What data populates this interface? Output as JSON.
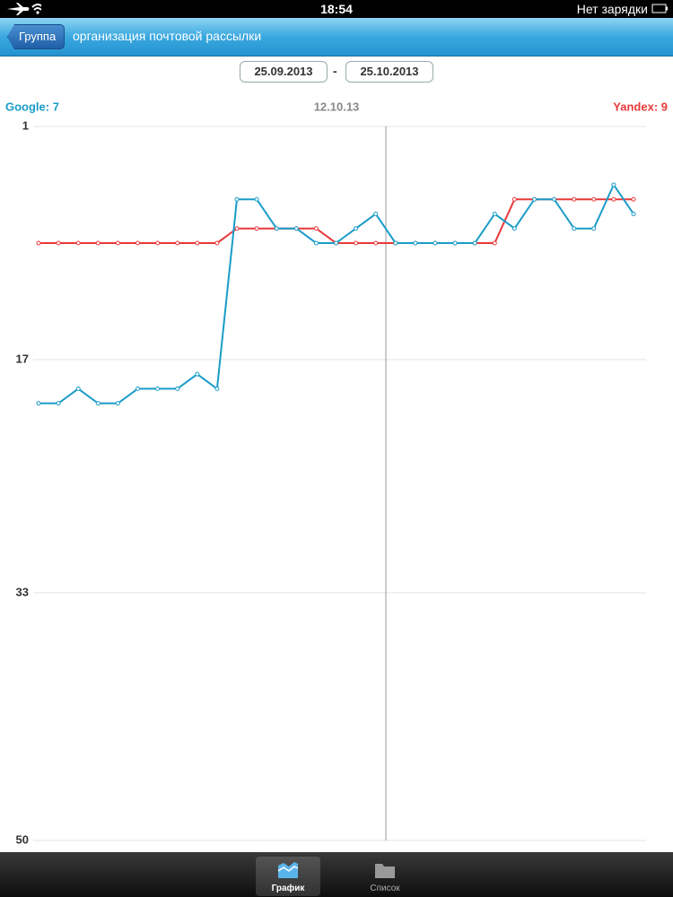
{
  "status_bar": {
    "time": "18:54",
    "battery": "Нет зарядки"
  },
  "nav_bar": {
    "back": "Группа",
    "title": "организация почтовой рассылки"
  },
  "date_range": {
    "from": "25.09.2013",
    "separator": "-",
    "to": "25.10.2013"
  },
  "chart_data": {
    "type": "line",
    "cursor_label": "12.10.13",
    "categories": [
      null,
      null,
      null,
      null,
      null,
      null,
      null,
      null,
      null,
      null,
      null,
      null,
      null,
      null,
      null,
      null,
      null,
      null,
      null,
      null,
      null,
      null,
      null,
      null,
      null,
      null,
      null,
      null,
      null,
      null,
      null
    ],
    "series": [
      {
        "name": "Google: 7",
        "color": "#1a9cc9",
        "values": [
          20,
          20,
          19,
          20,
          20,
          19,
          19,
          19,
          18,
          19,
          6,
          6,
          8,
          8,
          9,
          9,
          8,
          7,
          9,
          9,
          9,
          9,
          9,
          7,
          8,
          6,
          6,
          8,
          8,
          5,
          7
        ]
      },
      {
        "name": "Yandex: 9",
        "color": "#e8393a",
        "values": [
          9,
          9,
          9,
          9,
          9,
          9,
          9,
          9,
          9,
          9,
          8,
          8,
          8,
          8,
          8,
          9,
          9,
          9,
          9,
          9,
          9,
          9,
          9,
          9,
          6,
          6,
          6,
          6,
          6,
          6,
          6
        ]
      }
    ],
    "ylim": [
      50,
      1
    ],
    "yticks": [
      1,
      17,
      33,
      50
    ],
    "grid": true
  },
  "tab_bar": {
    "tabs": [
      {
        "label": "График",
        "selected": true
      },
      {
        "label": "Список",
        "selected": false
      }
    ]
  }
}
